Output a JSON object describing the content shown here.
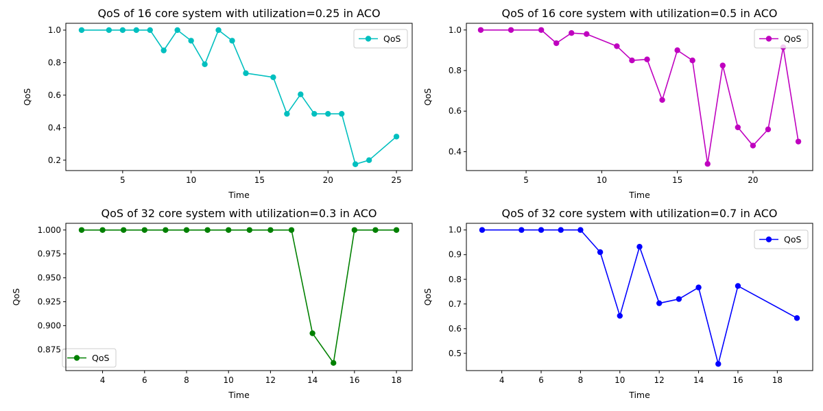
{
  "figure": {
    "background": "#ffffff"
  },
  "chart_data": [
    {
      "type": "line",
      "title": "QoS of 16 core system with utilization=0.25 in ACO",
      "xlabel": "Time",
      "ylabel": "QoS",
      "xlim": [
        0.85,
        26.15
      ],
      "ylim": [
        0.136,
        1.042
      ],
      "xticks": [
        5,
        10,
        15,
        20,
        25
      ],
      "xtick_labels": [
        "5",
        "10",
        "15",
        "20",
        "25"
      ],
      "yticks": [
        0.2,
        0.4,
        0.6,
        0.8,
        1.0
      ],
      "ytick_labels": [
        "0.2",
        "0.4",
        "0.6",
        "0.8",
        "1.0"
      ],
      "legend_position": "top-right",
      "grid": false,
      "series": [
        {
          "name": "QoS",
          "color": "#00bfbf",
          "x": [
            2,
            4,
            5,
            6,
            7,
            8,
            9,
            10,
            11,
            12,
            13,
            14,
            16,
            17,
            18,
            19,
            20,
            21,
            22,
            23,
            25
          ],
          "y": [
            1.0,
            1.0,
            1.0,
            1.0,
            1.0,
            0.875,
            1.0,
            0.935,
            0.79,
            1.0,
            0.935,
            0.735,
            0.71,
            0.485,
            0.605,
            0.485,
            0.485,
            0.485,
            0.175,
            0.2,
            0.345
          ]
        }
      ]
    },
    {
      "type": "line",
      "title": "QoS of 16 core system with utilization=0.5 in ACO",
      "xlabel": "Time",
      "ylabel": "QoS",
      "xlim": [
        1.05,
        23.95
      ],
      "ylim": [
        0.307,
        1.033
      ],
      "xticks": [
        5,
        10,
        15,
        20
      ],
      "xtick_labels": [
        "5",
        "10",
        "15",
        "20"
      ],
      "yticks": [
        0.4,
        0.6,
        0.8,
        1.0
      ],
      "ytick_labels": [
        "0.4",
        "0.6",
        "0.8",
        "1.0"
      ],
      "legend_position": "top-right",
      "grid": false,
      "series": [
        {
          "name": "QoS",
          "color": "#bf00bf",
          "x": [
            2,
            4,
            6,
            7,
            8,
            9,
            11,
            12,
            13,
            14,
            15,
            16,
            17,
            18,
            19,
            20,
            21,
            22,
            23
          ],
          "y": [
            1.0,
            1.0,
            1.0,
            0.935,
            0.985,
            0.98,
            0.92,
            0.85,
            0.855,
            0.655,
            0.9,
            0.85,
            0.34,
            0.825,
            0.52,
            0.43,
            0.51,
            0.915,
            0.45
          ]
        }
      ]
    },
    {
      "type": "line",
      "title": "QoS of 32 core system with utilization=0.3 in ACO",
      "xlabel": "Time",
      "ylabel": "QoS",
      "xlim": [
        2.25,
        18.75
      ],
      "ylim": [
        0.853,
        1.007
      ],
      "xticks": [
        4,
        6,
        8,
        10,
        12,
        14,
        16,
        18
      ],
      "xtick_labels": [
        "4",
        "6",
        "8",
        "10",
        "12",
        "14",
        "16",
        "18"
      ],
      "yticks": [
        0.875,
        0.9,
        0.925,
        0.95,
        0.975,
        1.0
      ],
      "ytick_labels": [
        "0.875",
        "0.900",
        "0.925",
        "0.950",
        "0.975",
        "1.000"
      ],
      "legend_position": "bottom-left",
      "grid": false,
      "series": [
        {
          "name": "QoS",
          "color": "#008000",
          "x": [
            3,
            4,
            5,
            6,
            7,
            8,
            9,
            10,
            11,
            12,
            13,
            14,
            15,
            16,
            17,
            18
          ],
          "y": [
            1.0,
            1.0,
            1.0,
            1.0,
            1.0,
            1.0,
            1.0,
            1.0,
            1.0,
            1.0,
            1.0,
            0.892,
            0.861,
            1.0,
            1.0,
            1.0
          ]
        }
      ]
    },
    {
      "type": "line",
      "title": "QoS of 32 core system with utilization=0.7 in ACO",
      "xlabel": "Time",
      "ylabel": "QoS",
      "xlim": [
        2.2,
        19.8
      ],
      "ylim": [
        0.43,
        1.027
      ],
      "xticks": [
        4,
        6,
        8,
        10,
        12,
        14,
        16,
        18
      ],
      "xtick_labels": [
        "4",
        "6",
        "8",
        "10",
        "12",
        "14",
        "16",
        "18"
      ],
      "yticks": [
        0.5,
        0.6,
        0.7,
        0.8,
        0.9,
        1.0
      ],
      "ytick_labels": [
        "0.5",
        "0.6",
        "0.7",
        "0.8",
        "0.9",
        "1.0"
      ],
      "legend_position": "top-right",
      "grid": false,
      "series": [
        {
          "name": "QoS",
          "color": "#0000ff",
          "x": [
            3,
            5,
            6,
            7,
            8,
            9,
            10,
            11,
            12,
            13,
            14,
            15,
            16,
            19
          ],
          "y": [
            1.0,
            1.0,
            1.0,
            1.0,
            1.0,
            0.91,
            0.652,
            0.932,
            0.703,
            0.72,
            0.767,
            0.457,
            0.773,
            0.643
          ]
        }
      ]
    }
  ]
}
